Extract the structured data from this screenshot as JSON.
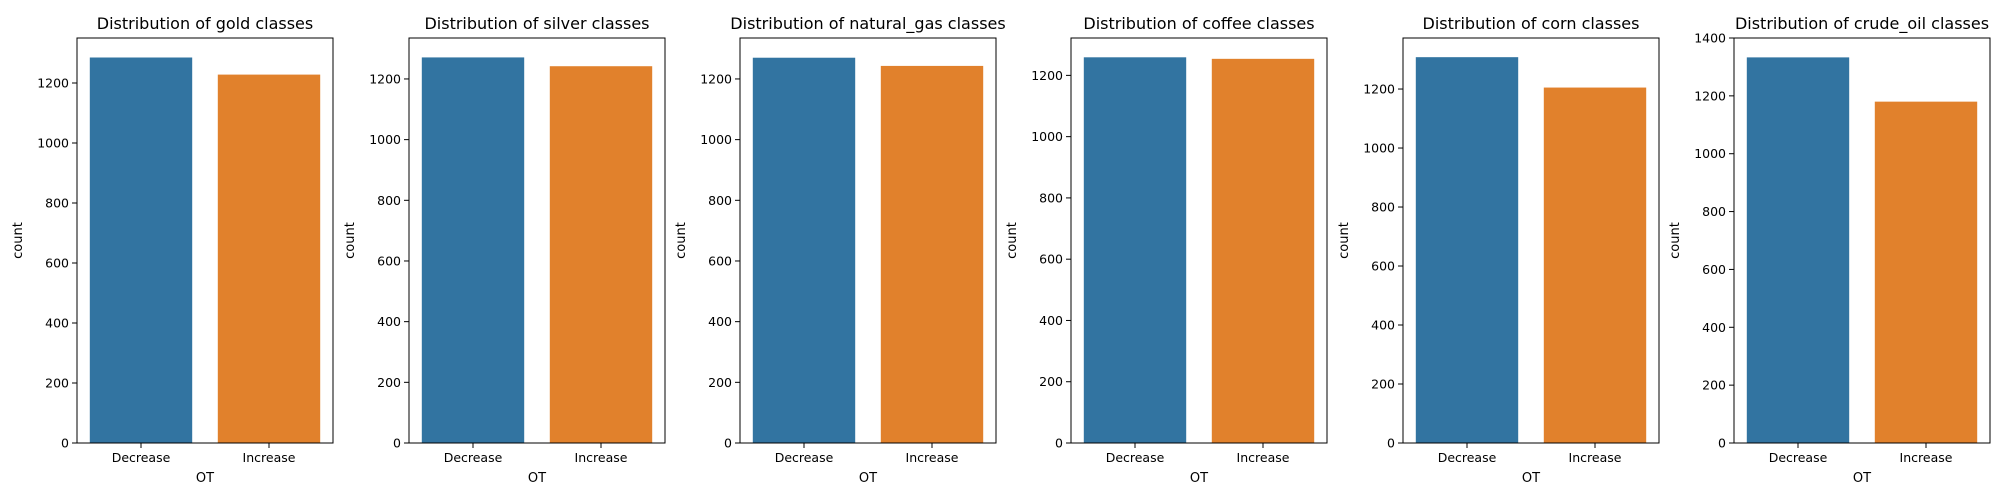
{
  "chart_data": [
    {
      "type": "bar",
      "title": "Distribution of gold classes",
      "xlabel": "OT",
      "ylabel": "count",
      "categories": [
        "Decrease",
        "Increase"
      ],
      "values": [
        1285,
        1228
      ],
      "ylim": [
        0,
        1350
      ],
      "yticks": [
        0,
        200,
        400,
        600,
        800,
        1000,
        1200
      ],
      "colors": [
        "#3274a1",
        "#e1812c"
      ],
      "grid": false
    },
    {
      "type": "bar",
      "title": "Distribution of silver classes",
      "xlabel": "OT",
      "ylabel": "count",
      "categories": [
        "Decrease",
        "Increase"
      ],
      "values": [
        1271,
        1242
      ],
      "ylim": [
        0,
        1335
      ],
      "yticks": [
        0,
        200,
        400,
        600,
        800,
        1000,
        1200
      ],
      "colors": [
        "#3274a1",
        "#e1812c"
      ],
      "grid": false
    },
    {
      "type": "bar",
      "title": "Distribution of natural_gas classes",
      "xlabel": "OT",
      "ylabel": "count",
      "categories": [
        "Decrease",
        "Increase"
      ],
      "values": [
        1270,
        1243
      ],
      "ylim": [
        0,
        1335
      ],
      "yticks": [
        0,
        200,
        400,
        600,
        800,
        1000,
        1200
      ],
      "colors": [
        "#3274a1",
        "#e1812c"
      ],
      "grid": false
    },
    {
      "type": "bar",
      "title": "Distribution of coffee classes",
      "xlabel": "OT",
      "ylabel": "count",
      "categories": [
        "Decrease",
        "Increase"
      ],
      "values": [
        1259,
        1254
      ],
      "ylim": [
        0,
        1322
      ],
      "yticks": [
        0,
        200,
        400,
        600,
        800,
        1000,
        1200
      ],
      "colors": [
        "#3274a1",
        "#e1812c"
      ],
      "grid": false
    },
    {
      "type": "bar",
      "title": "Distribution of corn classes",
      "xlabel": "OT",
      "ylabel": "count",
      "categories": [
        "Decrease",
        "Increase"
      ],
      "values": [
        1308,
        1205
      ],
      "ylim": [
        0,
        1373
      ],
      "yticks": [
        0,
        200,
        400,
        600,
        800,
        1000,
        1200
      ],
      "colors": [
        "#3274a1",
        "#e1812c"
      ],
      "grid": false
    },
    {
      "type": "bar",
      "title": "Distribution of crude_oil classes",
      "xlabel": "OT",
      "ylabel": "count",
      "categories": [
        "Decrease",
        "Increase"
      ],
      "values": [
        1333,
        1180
      ],
      "ylim": [
        0,
        1400
      ],
      "yticks": [
        0,
        200,
        400,
        600,
        800,
        1000,
        1200,
        1400
      ],
      "colors": [
        "#3274a1",
        "#e1812c"
      ],
      "grid": false
    }
  ]
}
